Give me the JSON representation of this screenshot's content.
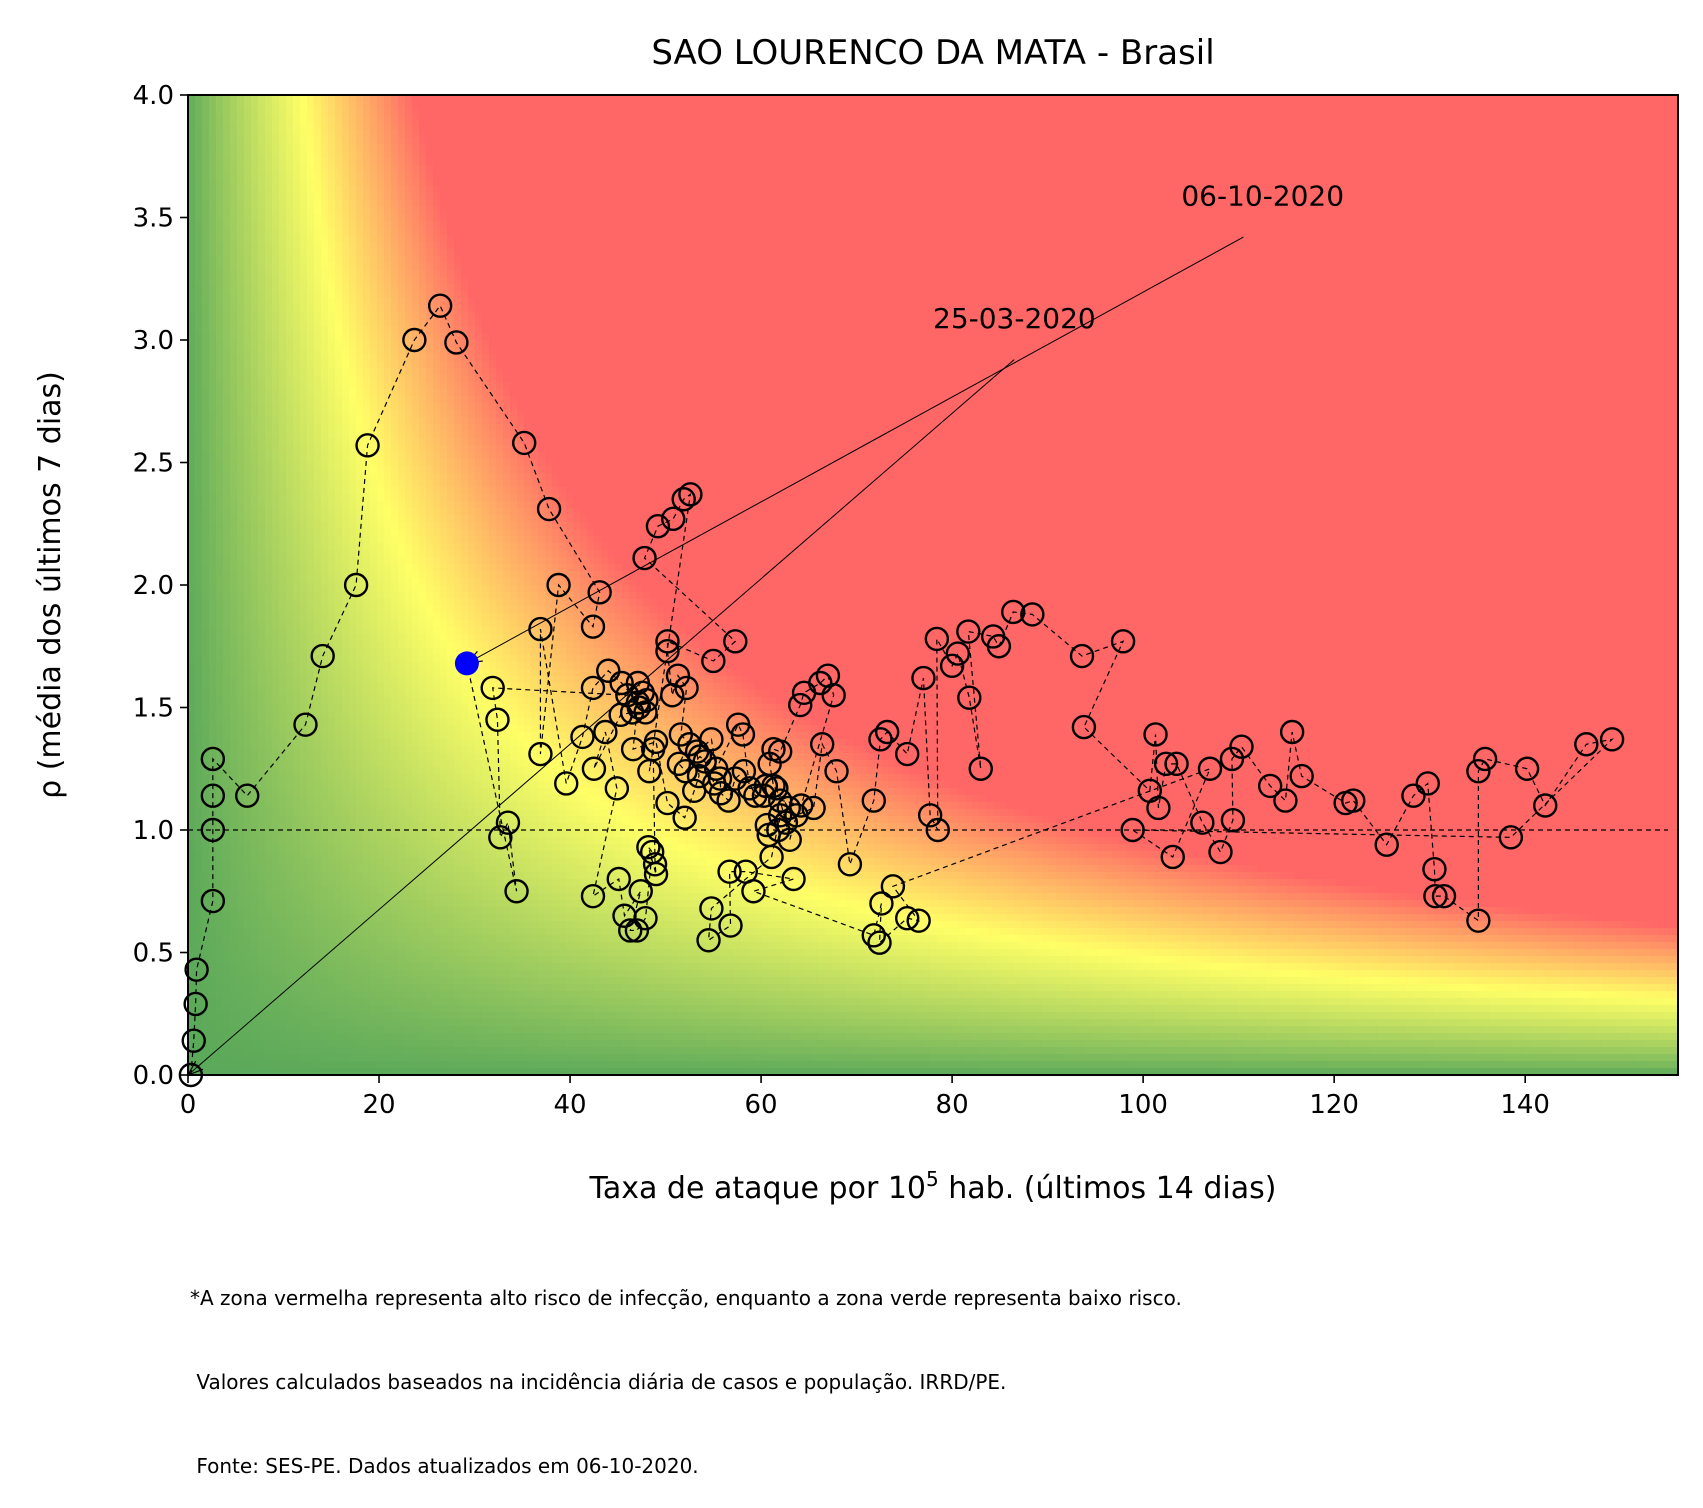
{
  "chart_data": {
    "type": "scatter",
    "title": "SAO LOURENCO DA MATA - Brasil",
    "xlabel_prefix": "Taxa de ataque por 10",
    "xlabel_sup": "5",
    "xlabel_suffix": " hab. (últimos 14 dias)",
    "ylabel": "ρ (média dos últimos 7 dias)",
    "xlim": [
      0,
      156
    ],
    "ylim": [
      0,
      4
    ],
    "x_ticks": [
      0,
      20,
      40,
      60,
      80,
      100,
      120,
      140
    ],
    "y_ticks": [
      0.0,
      0.5,
      1.0,
      1.5,
      2.0,
      2.5,
      3.0,
      3.5,
      4.0
    ],
    "reference_line_y": 1.0,
    "background": "risk heatmap: green (low risk) to yellow to red (high risk)",
    "colors": {
      "green": "#5aa85a",
      "yellow": "#ffff66",
      "red": "#ff6666",
      "last_point": "#0000ff"
    },
    "annotations": [
      {
        "text": "06-10-2020",
        "target": [
          29.2,
          1.68
        ],
        "text_pos": [
          104,
          3.55
        ]
      },
      {
        "text": "25-03-2020",
        "target": [
          0,
          0
        ],
        "text_pos": [
          78,
          3.05
        ]
      }
    ],
    "series": [
      {
        "points": [
          [
            0.3,
            0.0
          ],
          [
            0.6,
            0.14
          ],
          [
            0.8,
            0.29
          ],
          [
            0.9,
            0.43
          ],
          [
            2.6,
            0.71
          ],
          [
            2.6,
            1.0
          ],
          [
            2.6,
            1.14
          ],
          [
            2.6,
            1.29
          ],
          [
            6.2,
            1.14
          ],
          [
            12.3,
            1.43
          ],
          [
            14.1,
            1.71
          ],
          [
            17.6,
            2.0
          ],
          [
            18.8,
            2.57
          ],
          [
            23.7,
            3.0
          ],
          [
            26.4,
            3.14
          ],
          [
            28.1,
            2.99
          ],
          [
            35.2,
            2.58
          ],
          [
            37.8,
            2.31
          ],
          [
            43.1,
            1.97
          ],
          [
            42.4,
            1.83
          ],
          [
            38.8,
            2.0
          ],
          [
            36.9,
            1.31
          ],
          [
            36.9,
            1.82
          ],
          [
            39.6,
            1.19
          ],
          [
            41.3,
            1.38
          ],
          [
            42.4,
            1.58
          ],
          [
            44.0,
            1.65
          ],
          [
            45.4,
            1.6
          ],
          [
            47.1,
            1.52
          ],
          [
            46.6,
            1.33
          ],
          [
            49.0,
            1.36
          ],
          [
            50.2,
            1.11
          ],
          [
            52.0,
            1.05
          ],
          [
            53.0,
            1.16
          ],
          [
            53.5,
            1.22
          ],
          [
            53.3,
            1.32
          ],
          [
            54.8,
            1.37
          ],
          [
            55.3,
            1.25
          ],
          [
            57.6,
            1.43
          ],
          [
            58.1,
            1.39
          ],
          [
            58.8,
            1.17
          ],
          [
            60.5,
            1.18
          ],
          [
            61.6,
            1.17
          ],
          [
            62.0,
            1.12
          ],
          [
            62.6,
            1.03
          ],
          [
            63.0,
            0.96
          ],
          [
            63.7,
            1.06
          ],
          [
            65.5,
            1.09
          ],
          [
            66.4,
            1.35
          ],
          [
            67.9,
            1.24
          ],
          [
            69.3,
            0.86
          ],
          [
            71.8,
            1.12
          ],
          [
            72.5,
            1.37
          ],
          [
            73.2,
            1.4
          ],
          [
            75.3,
            1.31
          ],
          [
            77.0,
            1.62
          ],
          [
            77.7,
            1.06
          ],
          [
            78.5,
            1.0
          ],
          [
            78.4,
            1.78
          ],
          [
            80.0,
            1.67
          ],
          [
            80.6,
            1.72
          ],
          [
            81.8,
            1.54
          ],
          [
            83.0,
            1.25
          ],
          [
            81.7,
            1.81
          ],
          [
            84.3,
            1.79
          ],
          [
            84.9,
            1.75
          ],
          [
            86.4,
            1.89
          ],
          [
            88.4,
            1.88
          ],
          [
            93.6,
            1.71
          ],
          [
            97.9,
            1.77
          ],
          [
            93.8,
            1.42
          ],
          [
            100.7,
            1.16
          ],
          [
            101.3,
            1.39
          ],
          [
            101.6,
            1.09
          ],
          [
            102.4,
            1.27
          ],
          [
            103.5,
            1.27
          ],
          [
            106.2,
            1.03
          ],
          [
            108.1,
            0.91
          ],
          [
            109.4,
            1.04
          ],
          [
            109.3,
            1.29
          ],
          [
            110.3,
            1.34
          ],
          [
            113.3,
            1.18
          ],
          [
            114.9,
            1.12
          ],
          [
            115.6,
            1.4
          ],
          [
            116.6,
            1.22
          ],
          [
            121.2,
            1.11
          ],
          [
            122.0,
            1.12
          ],
          [
            125.5,
            0.94
          ],
          [
            128.3,
            1.14
          ],
          [
            129.8,
            1.19
          ],
          [
            130.5,
            0.84
          ],
          [
            130.6,
            0.73
          ],
          [
            131.5,
            0.73
          ],
          [
            135.1,
            0.63
          ],
          [
            135.1,
            1.24
          ],
          [
            135.8,
            1.29
          ],
          [
            140.2,
            1.25
          ],
          [
            142.1,
            1.1
          ],
          [
            146.4,
            1.35
          ],
          [
            149.1,
            1.37
          ],
          [
            138.5,
            0.97
          ],
          [
            98.9,
            1.0
          ],
          [
            103.1,
            0.89
          ],
          [
            107.0,
            1.25
          ],
          [
            73.8,
            0.77
          ],
          [
            76.5,
            0.63
          ],
          [
            75.3,
            0.64
          ],
          [
            72.4,
            0.54
          ],
          [
            72.6,
            0.7
          ],
          [
            71.8,
            0.57
          ],
          [
            59.2,
            0.75
          ],
          [
            63.4,
            0.8
          ],
          [
            58.4,
            0.83
          ],
          [
            56.7,
            0.83
          ],
          [
            56.8,
            0.61
          ],
          [
            54.5,
            0.55
          ],
          [
            54.8,
            0.68
          ],
          [
            61.1,
            0.89
          ],
          [
            62.0,
            1.06
          ],
          [
            61.8,
            1.0
          ],
          [
            60.8,
            0.98
          ],
          [
            60.6,
            1.02
          ],
          [
            62.9,
            1.09
          ],
          [
            61.3,
            1.18
          ],
          [
            60.9,
            1.27
          ],
          [
            61.3,
            1.33
          ],
          [
            62.0,
            1.32
          ],
          [
            64.1,
            1.51
          ],
          [
            64.5,
            1.56
          ],
          [
            66.2,
            1.6
          ],
          [
            67.0,
            1.63
          ],
          [
            67.6,
            1.55
          ],
          [
            64.2,
            1.1
          ],
          [
            60.3,
            1.14
          ],
          [
            59.4,
            1.14
          ],
          [
            58.2,
            1.24
          ],
          [
            57.3,
            1.21
          ],
          [
            56.6,
            1.12
          ],
          [
            55.8,
            1.15
          ],
          [
            55.7,
            1.21
          ],
          [
            55.1,
            1.19
          ],
          [
            54.1,
            1.28
          ],
          [
            53.6,
            1.3
          ],
          [
            52.1,
            1.24
          ],
          [
            51.4,
            1.27
          ],
          [
            52.5,
            1.35
          ],
          [
            51.6,
            1.39
          ],
          [
            52.2,
            1.58
          ],
          [
            51.3,
            1.63
          ],
          [
            50.7,
            1.55
          ],
          [
            50.2,
            1.73
          ],
          [
            50.2,
            1.77
          ],
          [
            55.0,
            1.69
          ],
          [
            57.3,
            1.77
          ],
          [
            47.8,
            2.11
          ],
          [
            49.2,
            2.24
          ],
          [
            50.8,
            2.27
          ],
          [
            51.9,
            2.35
          ],
          [
            52.6,
            2.37
          ],
          [
            48.3,
            1.24
          ],
          [
            48.7,
            1.33
          ],
          [
            48.9,
            0.86
          ],
          [
            49.0,
            0.82
          ],
          [
            48.2,
            0.93
          ],
          [
            48.6,
            0.91
          ],
          [
            47.9,
            0.64
          ],
          [
            47.0,
            0.59
          ],
          [
            46.3,
            0.59
          ],
          [
            47.4,
            0.75
          ],
          [
            45.7,
            0.65
          ],
          [
            45.1,
            0.8
          ],
          [
            42.4,
            0.73
          ],
          [
            44.9,
            1.17
          ],
          [
            43.7,
            1.4
          ],
          [
            42.5,
            1.25
          ],
          [
            45.3,
            1.47
          ],
          [
            46.5,
            1.48
          ],
          [
            47.9,
            1.48
          ],
          [
            47.2,
            1.5
          ],
          [
            48.0,
            1.53
          ],
          [
            47.6,
            1.56
          ],
          [
            47.1,
            1.6
          ],
          [
            46.0,
            1.55
          ],
          [
            31.9,
            1.58
          ],
          [
            32.4,
            1.45
          ],
          [
            32.7,
            0.97
          ],
          [
            33.5,
            1.03
          ],
          [
            34.4,
            0.75
          ]
        ]
      }
    ],
    "last_point": [
      29.2,
      1.68
    ],
    "footnote_lines": [
      "*A zona vermelha representa alto risco de infecção, enquanto a zona verde representa baixo risco.",
      " Valores calculados baseados na incidência diária de casos e população. IRRD/PE.",
      " Fonte: SES-PE. Dados atualizados em 06-10-2020."
    ]
  }
}
